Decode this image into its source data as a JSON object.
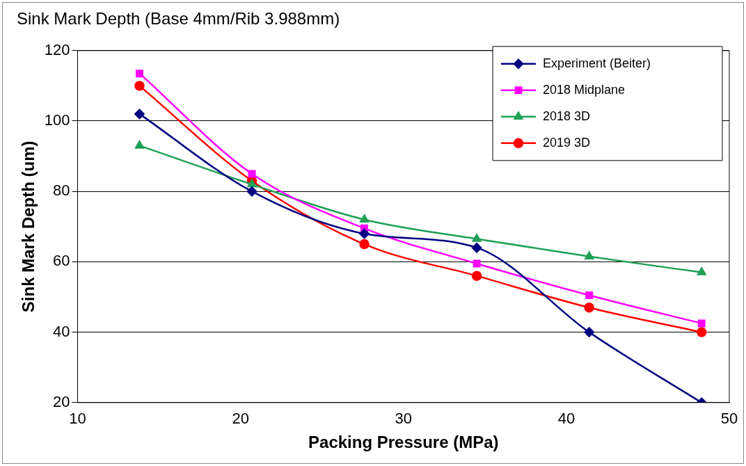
{
  "chart_data": {
    "type": "line",
    "title": "Sink Mark Depth (Base 4mm/Rib 3.988mm)",
    "xlabel": "Packing Pressure (MPa)",
    "ylabel": "Sink Mark Depth (um)",
    "x": [
      13.8,
      20.7,
      27.6,
      34.5,
      41.4,
      48.3
    ],
    "xlim": [
      10,
      50
    ],
    "xticks": [
      10,
      20,
      30,
      40,
      50
    ],
    "ylim": [
      20,
      120
    ],
    "yticks": [
      20,
      40,
      60,
      80,
      100,
      120
    ],
    "grid": "y",
    "legend": "top right",
    "series": [
      {
        "name": "Experiment (Beiter)",
        "color": "#000080",
        "marker": "diamond",
        "values": [
          102,
          80,
          68,
          64,
          40,
          20
        ]
      },
      {
        "name": "2018 Midplane",
        "color": "#ff00ff",
        "marker": "square",
        "values": [
          113.5,
          85,
          69.5,
          59.5,
          50.5,
          42.5
        ]
      },
      {
        "name": "2018 3D",
        "color": "#1fa055",
        "marker": "triangle",
        "values": [
          93,
          82,
          72,
          66.5,
          61.5,
          57
        ]
      },
      {
        "name": "2019 3D",
        "color": "#ff0000",
        "marker": "circle",
        "values": [
          110,
          83,
          65,
          56,
          47,
          40
        ]
      }
    ]
  }
}
